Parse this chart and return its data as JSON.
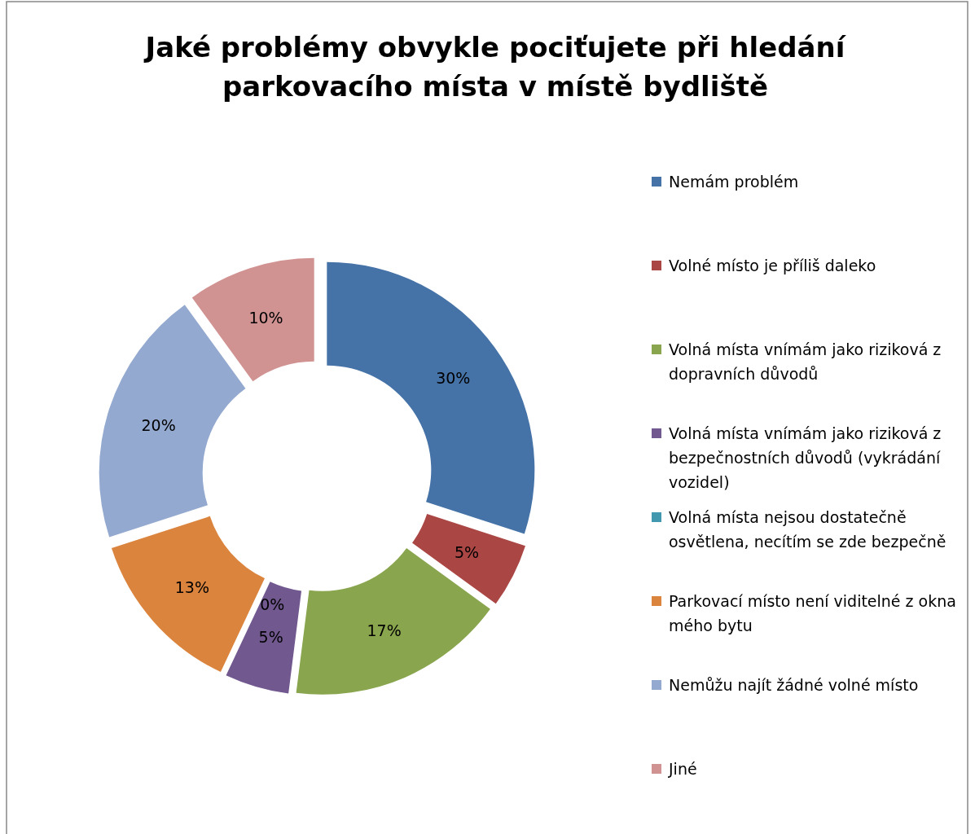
{
  "chart_data": {
    "type": "donut",
    "title": "Jaké problémy obvykle pociťujete při hledání parkovacího místa v místě bydliště",
    "categories": [
      "Nemám problém",
      "Volné místo je příliš daleko",
      "Volná místa vnímám jako riziková z dopravních důvodů",
      "Volná místa vnímám jako riziková z bezpečnostních důvodů (vykrádání vozidel)",
      "Volná místa nejsou dostatečně osvětlena, necítím se zde bezpečně",
      "Parkovací místo není viditelné z okna mého bytu",
      "Nemůžu najít žádné volné místo",
      "Jiné"
    ],
    "values": [
      30,
      5,
      17,
      5,
      0,
      13,
      20,
      10
    ],
    "value_labels": [
      "30%",
      "5%",
      "17%",
      "5%",
      "0%",
      "13%",
      "20%",
      "10%"
    ],
    "colors": [
      "#4572a7",
      "#aa4643",
      "#89a54e",
      "#71588f",
      "#4198af",
      "#db843d",
      "#93a9cf",
      "#d19392"
    ],
    "legend": "right"
  }
}
